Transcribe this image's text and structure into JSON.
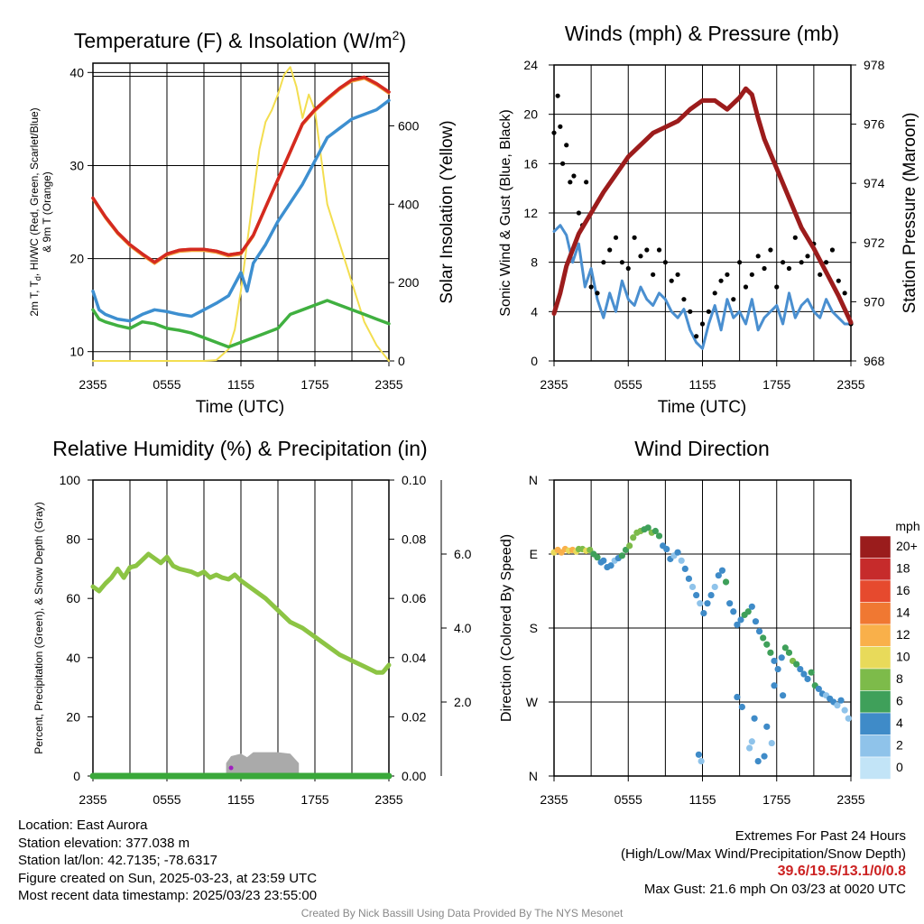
{
  "charts": {
    "temp": {
      "title": "Temperature (F) & Insolation (W/m",
      "title_sup": "2",
      "title_end": ")",
      "ylabel_left_1": "2m T, T",
      "ylabel_left_sub": "d",
      "ylabel_left_2": ", HI/WC (Red, Green, Scarlet/Blue)",
      "ylabel_left_3": "& 9m T (Orange)",
      "ylabel_right": "Solar Insolation (Yellow)",
      "xlabel": "Time (UTC)"
    },
    "wind": {
      "title": "Winds (mph) & Pressure (mb)",
      "ylabel_left": "Sonic Wind & Gust (Blue, Black)",
      "ylabel_right": "Station Pressure (Maroon)",
      "xlabel": "Time (UTC)"
    },
    "rh": {
      "title": "Relative Humidity (%) & Precipitation (in)",
      "ylabel_left": "Percent, Precipitation (Green), & Snow Depth (Gray)"
    },
    "dir": {
      "title": "Wind Direction",
      "ylabel_left": "Direction (Colored By Speed)",
      "legend_title": "mph"
    }
  },
  "chart_data": [
    {
      "type": "line",
      "title": "Temperature (F) & Insolation (W/m2)",
      "x_ticks": [
        "2355",
        "0555",
        "1155",
        "1755",
        "2355"
      ],
      "x_hours": [
        0,
        24
      ],
      "ylim": [
        9,
        41
      ],
      "y_ticks": [
        "10",
        "20",
        "30",
        "40"
      ],
      "y2lim": [
        0,
        760
      ],
      "y2_ticks": [
        "0",
        "200",
        "400",
        "600"
      ],
      "series": [
        {
          "name": "Temperature",
          "color": "#d42a20",
          "width": 3.5,
          "x": [
            0,
            1,
            2,
            3,
            4,
            5,
            6,
            7,
            8,
            9,
            10,
            11,
            12,
            13,
            14,
            15,
            16,
            17,
            18,
            19,
            20,
            21,
            22,
            23,
            24
          ],
          "y": [
            26.5,
            24.5,
            22.8,
            21.5,
            20.5,
            19.6,
            20.5,
            20.9,
            21,
            21,
            20.8,
            20.4,
            20.6,
            22.5,
            25.5,
            28.5,
            31.5,
            34.5,
            36,
            37.2,
            38.3,
            39.2,
            39.5,
            38.8,
            37.9
          ]
        },
        {
          "name": "Heat Index / Wind Chill",
          "color": "#3d8fd0",
          "width": 3.5,
          "x": [
            0,
            0.5,
            1,
            2,
            3,
            4,
            5,
            6,
            7,
            8,
            9,
            10,
            11,
            12,
            12.5,
            13,
            14,
            15,
            16,
            17,
            18,
            19,
            20,
            21,
            22,
            23,
            24
          ],
          "y": [
            16.5,
            14.5,
            14,
            13.5,
            13.3,
            14,
            14.5,
            14.3,
            14,
            13.8,
            14.5,
            15.2,
            16,
            18.5,
            16.5,
            19.5,
            21.5,
            24,
            26,
            28,
            30.5,
            33,
            34,
            35,
            35.5,
            36,
            37
          ]
        },
        {
          "name": "Dew Point",
          "color": "#40b040",
          "width": 3.5,
          "x": [
            0,
            0.5,
            1,
            2,
            3,
            4,
            5,
            6,
            7,
            8,
            9,
            10,
            11,
            12,
            13,
            14,
            15,
            16,
            17,
            18,
            19,
            20,
            21,
            22,
            23,
            24
          ],
          "y": [
            14.5,
            13.5,
            13.2,
            12.8,
            12.5,
            13.2,
            13,
            12.5,
            12.3,
            12,
            11.5,
            11,
            10.5,
            11,
            11.5,
            12,
            12.5,
            14,
            14.5,
            15,
            15.5,
            15,
            14.5,
            14,
            13.5,
            13
          ]
        },
        {
          "name": "Solar Insolation",
          "color": "#f3de50",
          "width": 2,
          "axis": "right",
          "x": [
            0,
            9,
            10,
            11,
            11.5,
            12,
            12.5,
            13,
            13.5,
            14,
            14.5,
            15,
            15.5,
            16,
            16.5,
            17,
            17.5,
            18,
            18.5,
            19,
            20,
            21,
            22,
            23,
            24
          ],
          "y": [
            0,
            0,
            2,
            30,
            80,
            180,
            300,
            420,
            540,
            610,
            640,
            680,
            730,
            750,
            700,
            620,
            680,
            640,
            520,
            400,
            300,
            200,
            100,
            40,
            0
          ]
        }
      ]
    },
    {
      "type": "line",
      "title": "Winds (mph) & Pressure (mb)",
      "x_ticks": [
        "2355",
        "0555",
        "1155",
        "1755",
        "2355"
      ],
      "ylim": [
        0,
        24
      ],
      "y_ticks": [
        "0",
        "4",
        "8",
        "12",
        "16",
        "20",
        "24"
      ],
      "y2lim": [
        968,
        978
      ],
      "y2_ticks": [
        "968",
        "970",
        "972",
        "974",
        "976",
        "978"
      ],
      "series": [
        {
          "name": "Sonic Wind",
          "color": "#4a8fd0",
          "width": 3,
          "x": [
            0,
            0.5,
            1,
            1.5,
            2,
            2.5,
            3,
            3.5,
            4,
            4.5,
            5,
            5.5,
            6,
            6.5,
            7,
            7.5,
            8,
            8.5,
            9,
            9.5,
            10,
            10.5,
            11,
            11.5,
            12,
            12.5,
            13,
            13.5,
            14,
            14.5,
            15,
            15.5,
            16,
            16.5,
            17,
            17.5,
            18,
            18.5,
            19,
            19.5,
            20,
            20.5,
            21,
            21.5,
            22,
            22.5,
            23,
            23.5,
            24
          ],
          "y": [
            10.5,
            11,
            10.2,
            8,
            9.5,
            6,
            7.5,
            5,
            3.5,
            5.5,
            4,
            6.5,
            5,
            4.5,
            6,
            5,
            4.5,
            5.5,
            5,
            4,
            3.5,
            4.2,
            2.5,
            1.5,
            1,
            3,
            4.5,
            2.5,
            5,
            3.5,
            4,
            3,
            5,
            2.5,
            3.5,
            4,
            4.5,
            3,
            5.5,
            3.5,
            4.5,
            5,
            4,
            3.5,
            5,
            4,
            3.5,
            3,
            3
          ]
        },
        {
          "name": "Station Pressure",
          "color": "#9c1c1c",
          "width": 5,
          "axis": "right",
          "x": [
            0,
            0.5,
            1,
            2,
            3,
            4,
            5,
            6,
            7,
            8,
            9,
            10,
            11,
            12,
            13,
            14,
            15,
            15.5,
            16,
            16.5,
            17,
            18,
            19,
            20,
            21,
            22,
            23,
            24
          ],
          "y": [
            969.6,
            970.3,
            971.2,
            972.3,
            973,
            973.7,
            974.3,
            974.9,
            975.3,
            975.7,
            975.9,
            976.1,
            976.5,
            976.8,
            976.8,
            976.5,
            976.9,
            977.2,
            977,
            976.2,
            975.5,
            974.5,
            973.5,
            972.5,
            971.8,
            971,
            970.2,
            969.3
          ]
        }
      ],
      "gust_points": {
        "name": "Gust",
        "color": "#000000",
        "x": [
          0,
          0.3,
          0.5,
          0.7,
          1,
          1.3,
          1.6,
          2,
          2.3,
          2.6,
          3,
          3.5,
          4,
          4.5,
          5,
          5.5,
          6,
          6.5,
          7,
          7.5,
          8,
          8.5,
          9,
          9.5,
          10,
          10.5,
          11,
          11.5,
          12,
          12.5,
          13,
          13.5,
          14,
          14.5,
          15,
          15.5,
          16,
          16.5,
          17,
          17.5,
          18,
          18.5,
          19,
          19.5,
          20,
          20.5,
          21,
          21.5,
          22,
          22.5,
          23,
          23.5,
          24
        ],
        "y": [
          18.5,
          21.5,
          19,
          16,
          17.5,
          14.5,
          15,
          12,
          11,
          14.5,
          6,
          5.5,
          8,
          9,
          10,
          8,
          7.5,
          10,
          8.5,
          9,
          7,
          9,
          8,
          6.5,
          7,
          5,
          4,
          2,
          3,
          4,
          5.5,
          6.5,
          7,
          5,
          8,
          6,
          7,
          8.5,
          7.5,
          9,
          6,
          8,
          7.5,
          10,
          8,
          8.5,
          9.5,
          7,
          8,
          9,
          6.5,
          5.5,
          3
        ]
      }
    },
    {
      "type": "line",
      "title": "Relative Humidity (%) & Precipitation (in)",
      "x_ticks": [
        "2355",
        "0555",
        "1155",
        "1755",
        "2355"
      ],
      "ylim": [
        0,
        100
      ],
      "y_ticks": [
        "0",
        "20",
        "40",
        "60",
        "80",
        "100"
      ],
      "y2_ticks": [
        "0.00",
        "0.02",
        "0.04",
        "0.06",
        "0.08",
        "0.10"
      ],
      "y3_ticks": [
        "2.0",
        "4.0",
        "6.0"
      ],
      "series": [
        {
          "name": "Relative Humidity",
          "color": "#8cc444",
          "width": 5,
          "x": [
            0,
            0.5,
            1,
            1.5,
            2,
            2.5,
            3,
            3.5,
            4,
            4.5,
            5,
            5.5,
            6,
            6.5,
            7,
            7.5,
            8,
            8.5,
            9,
            9.5,
            10,
            10.5,
            11,
            11.5,
            12,
            13,
            14,
            15,
            16,
            17,
            18,
            19,
            20,
            21,
            22,
            23,
            23.5,
            24
          ],
          "y": [
            64,
            62.5,
            65,
            67,
            70,
            67,
            70.5,
            71,
            73,
            75,
            73.5,
            72,
            74,
            71,
            70,
            69.5,
            69,
            68,
            69,
            67,
            68,
            67,
            66.5,
            68,
            66,
            63,
            60,
            56,
            52,
            50,
            47,
            44,
            41,
            39,
            37,
            35,
            35,
            37.5
          ]
        },
        {
          "name": "Precipitation",
          "color": "#3aa83a",
          "width": 7,
          "x": [
            0,
            24
          ],
          "y": [
            0,
            0
          ]
        }
      ],
      "snow_depth": {
        "name": "Snow Depth",
        "color": "#aaaaaa",
        "x": [
          10.8,
          11.2,
          12,
          12.5,
          13,
          15,
          16,
          16.7
        ],
        "y": [
          2.6,
          4.0,
          4.5,
          3.8,
          4.8,
          4.8,
          4.5,
          2.6
        ]
      }
    },
    {
      "type": "scatter",
      "title": "Wind Direction",
      "x_ticks": [
        "2355",
        "0555",
        "1155",
        "1755",
        "2355"
      ],
      "y_ticks": [
        "N",
        "W",
        "S",
        "E",
        "N"
      ],
      "ylim": [
        0,
        360
      ],
      "legend": {
        "title": "mph",
        "labels": [
          "20+",
          "18",
          "16",
          "14",
          "12",
          "10",
          "8",
          "6",
          "4",
          "2",
          "0"
        ],
        "colors": [
          "#9a1c1c",
          "#c62b2b",
          "#e64a2e",
          "#f07832",
          "#f9b04a",
          "#e8da5a",
          "#7dbb4a",
          "#3fa05a",
          "#3f8bc8",
          "#8fc3ea",
          "#c2e4f7"
        ]
      },
      "points": {
        "x": [
          0,
          0.3,
          0.6,
          0.9,
          1.2,
          1.5,
          1.8,
          2,
          2.3,
          2.6,
          2.9,
          3.2,
          3.5,
          3.8,
          4,
          4.3,
          4.6,
          4.9,
          5.2,
          5.5,
          5.8,
          6.1,
          6.4,
          6.7,
          7,
          7.3,
          7.6,
          7.9,
          8.2,
          8.5,
          8.8,
          9.1,
          9.4,
          9.7,
          10,
          10.3,
          10.6,
          10.9,
          11.2,
          11.5,
          11.8,
          12.1,
          12.4,
          12.7,
          13,
          13.3,
          13.6,
          13.9,
          14.2,
          14.5,
          14.8,
          15.1,
          15.4,
          15.7,
          16,
          16.3,
          16.6,
          16.9,
          17.2,
          17.5,
          17.8,
          18.1,
          18.4,
          18.7,
          19,
          19.3,
          19.6,
          19.9,
          20.2,
          20.5,
          20.8,
          21.1,
          21.4,
          21.7,
          22,
          22.3,
          22.6,
          22.9,
          23.2,
          23.5,
          23.8,
          11.7,
          11.9,
          15.8,
          16,
          16.5,
          17,
          17.2,
          17.6,
          14.8,
          15.2,
          16.2,
          17.8,
          18.5
        ],
        "y": [
          272,
          275,
          272,
          276,
          274,
          275,
          273,
          276,
          276,
          274,
          275,
          270,
          266,
          260,
          262,
          254,
          256,
          262,
          265,
          268,
          275,
          280,
          290,
          296,
          298,
          300,
          302,
          296,
          298,
          292,
          280,
          276,
          264,
          268,
          272,
          262,
          252,
          240,
          230,
          220,
          210,
          198,
          210,
          220,
          230,
          244,
          250,
          236,
          210,
          200,
          184,
          190,
          196,
          200,
          206,
          188,
          176,
          168,
          160,
          150,
          140,
          130,
          144,
          156,
          150,
          140,
          136,
          130,
          124,
          118,
          126,
          110,
          106,
          100,
          98,
          94,
          90,
          86,
          92,
          80,
          70,
          26,
          18,
          34,
          42,
          18,
          24,
          60,
          40,
          96,
          84,
          70,
          110,
          98
        ],
        "c": [
          10,
          11,
          11,
          12,
          10,
          11,
          9,
          8,
          8,
          9,
          7,
          6,
          5,
          4,
          4,
          3,
          3,
          2,
          4,
          5,
          6,
          7,
          7,
          8,
          7,
          6,
          6,
          7,
          6,
          5,
          4,
          3,
          3,
          2,
          3,
          2,
          4,
          3,
          2,
          3,
          2,
          3,
          4,
          3,
          2,
          4,
          3,
          6,
          4,
          3,
          3,
          4,
          5,
          6,
          4,
          3,
          4,
          5,
          6,
          5,
          4,
          3,
          4,
          5,
          6,
          7,
          5,
          4,
          3,
          4,
          5,
          6,
          4,
          3,
          2,
          4,
          3,
          2,
          3,
          2,
          2,
          3,
          2,
          2,
          2,
          3,
          3,
          3,
          2,
          4,
          4,
          3,
          3,
          3
        ]
      }
    }
  ],
  "footer": {
    "location": "Location: East Aurora",
    "elevation": "Station elevation: 377.038 m",
    "latlon": "Station lat/lon: 42.7135; -78.6317",
    "created": "Figure created on Sun, 2025-03-23, at 23:59 UTC",
    "recent": "Most recent data timestamp: 2025/03/23 23:55:00",
    "extremes_title": "Extremes For Past 24 Hours",
    "extremes_subtitle": "(High/Low/Max Wind/Precipitation/Snow Depth)",
    "extremes_values": "39.6/19.5/13.1/0/0.8",
    "max_gust": "Max Gust: 21.6 mph On 03/23 at 0020 UTC",
    "credit": "Created By Nick Bassill Using Data Provided By The NYS Mesonet"
  }
}
